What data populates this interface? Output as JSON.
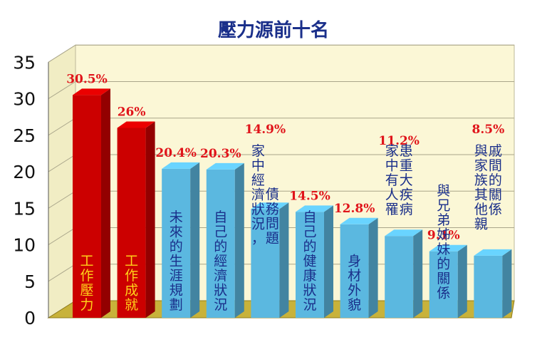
{
  "chart_data": {
    "type": "bar",
    "title": "壓力源前十名",
    "xlabel": "",
    "ylabel": "",
    "ylim": [
      0,
      35
    ],
    "yticks": [
      0,
      5,
      10,
      15,
      20,
      25,
      30,
      35
    ],
    "grid": true,
    "legend": "none",
    "categories": [
      "工作壓力",
      "工作成就",
      "未來的生涯規劃",
      "自己的經濟狀況",
      "家中經濟狀況，債務問題",
      "自己的健康狀況",
      "身材外貌",
      "家中有人罹患重大疾病",
      "與兄弟姊妹的關係",
      "與家族其他親戚間的關係"
    ],
    "values": [
      30.5,
      26,
      20.4,
      20.3,
      14.9,
      14.5,
      12.8,
      11.2,
      9.1,
      8.5
    ],
    "value_labels": [
      "30.5%",
      "26%",
      "20.4%",
      "20.3%",
      "14.9%",
      "14.5%",
      "12.8%",
      "11.2%",
      "9.1%",
      "8.5%"
    ],
    "colors": {
      "highlight": "#cc0000",
      "normal": "#5bb8e0",
      "highlight_text": "#ffd21a",
      "normal_text": "#1a2f8a",
      "value_text": "#e0141a",
      "wall": "#fbf7d6",
      "floor": "#c8b23a"
    },
    "highlight_count": 2
  }
}
